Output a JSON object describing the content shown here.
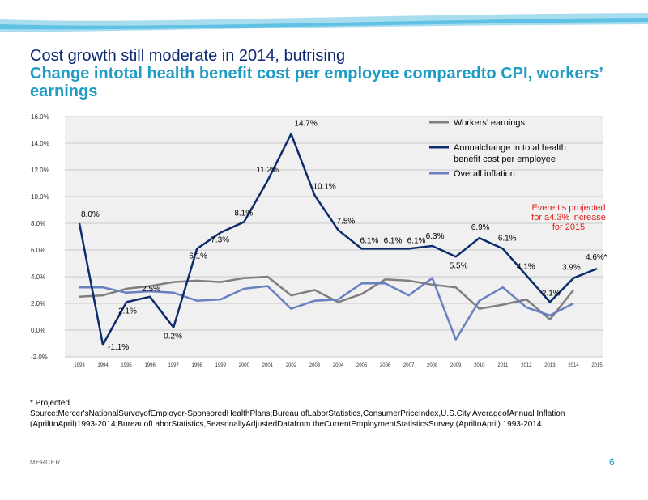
{
  "slide": {
    "title": "Cost growth still moderate in 2014, butrising",
    "subtitle": "Change intotal health benefit cost per employee comparedto CPI, workers’ earnings",
    "footnote": "* Projected",
    "source": "Source:Mercer'sNationalSurveyofEmployer-SponsoredHealthPlans;Bureau ofLaborStatistics,ConsumerPriceIndex,U.S.City AverageofAnnual Inflation (AprilttoApril)1993-2014;BureauofLaborStatistics,SeasonallyAdjustedDatafrom theCurrentEmploymentStatisticsSurvey (ApriltoApril) 1993-2014.",
    "brand": "MERCER",
    "page_number": "6"
  },
  "colors": {
    "wave_light": "#a8dcef",
    "wave_mid": "#5fc1e3",
    "plot_bg": "#f0f0f0",
    "grid": "#c9c9c9"
  },
  "chart_data": {
    "type": "line",
    "x": [
      "1993",
      "1994",
      "1995",
      "1996",
      "1997",
      "1998",
      "1999",
      "2000",
      "2001",
      "2002",
      "2003",
      "2004",
      "2005",
      "2006",
      "2007",
      "2008",
      "2009",
      "2010",
      "2011",
      "2012",
      "2013",
      "2014",
      "2015"
    ],
    "ylim": [
      -2,
      16
    ],
    "yticks": [
      "-2.0%",
      "0.0%",
      "2.0%",
      "4.0%",
      "6.0%",
      "8.0%",
      "10.0%",
      "12.0%",
      "14.0%",
      "16.0%"
    ],
    "grid": true,
    "legend_position": "top-right",
    "series": [
      {
        "name": "Workers’ earnings",
        "color": "#7f7f7f",
        "values": [
          2.5,
          2.6,
          3.1,
          3.3,
          3.6,
          3.7,
          3.6,
          3.9,
          4.0,
          2.6,
          3.0,
          2.1,
          2.7,
          3.8,
          3.7,
          3.4,
          3.2,
          1.6,
          1.9,
          2.3,
          0.8,
          3.0,
          null
        ]
      },
      {
        "name": "Annualchange in total health benefit cost per employee",
        "color": "#0c2c6b",
        "values": [
          8.0,
          -1.1,
          2.1,
          2.5,
          0.2,
          6.1,
          7.3,
          8.1,
          11.2,
          14.7,
          10.1,
          7.5,
          6.1,
          6.1,
          6.1,
          6.3,
          5.5,
          6.9,
          6.1,
          4.1,
          2.1,
          3.9,
          4.6
        ],
        "labels": [
          "8.0%",
          "-1.1%",
          "2.1%",
          "2.5%",
          "0.2%",
          "6.1%",
          "7.3%",
          "8.1%",
          "11.2%",
          "14.7%",
          "10.1%",
          "7.5%",
          "6.1%",
          "6.1%",
          "6.1%",
          "6.3%",
          "5.5%",
          "6.9%",
          "6.1%",
          "4.1%",
          "2.1%",
          "3.9%",
          "4.6%*"
        ]
      },
      {
        "name": "Overall inflation",
        "color": "#6a7fc0",
        "values": [
          3.2,
          3.2,
          2.8,
          2.9,
          2.8,
          2.2,
          2.3,
          3.1,
          3.3,
          1.6,
          2.2,
          2.3,
          3.5,
          3.5,
          2.6,
          3.9,
          -0.7,
          2.2,
          3.2,
          1.7,
          1.1,
          2.0,
          null
        ]
      }
    ],
    "annotation": "Everettis projected for a4.3% increase for 2015",
    "annotation_color": "#e0201b"
  }
}
